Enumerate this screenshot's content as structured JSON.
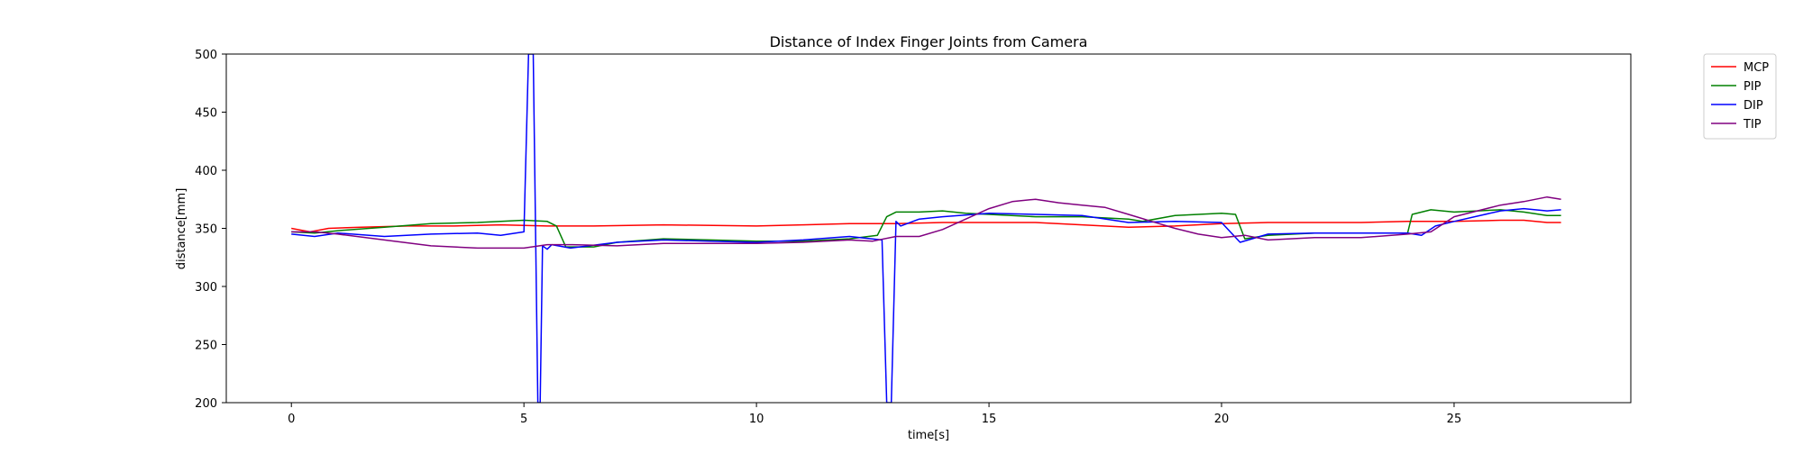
{
  "chart_data": {
    "type": "line",
    "title": "Distance of Index Finger Joints from Camera",
    "xlabel": "time[s]",
    "ylabel": "distance[mm]",
    "xlim": [
      -1.4,
      28.8
    ],
    "ylim": [
      200,
      500
    ],
    "xticks": [
      0,
      5,
      10,
      15,
      20,
      25
    ],
    "yticks": [
      200,
      250,
      300,
      350,
      400,
      450,
      500
    ],
    "grid": false,
    "legend_position": "outside-top-right",
    "series": [
      {
        "name": "MCP",
        "color": "#ff0000",
        "x": [
          0,
          0.4,
          0.8,
          1.5,
          2.5,
          3.5,
          4.5,
          5.5,
          6.5,
          8,
          10,
          11,
          12,
          13,
          14,
          15,
          16,
          17,
          18,
          19,
          20,
          21,
          22,
          23,
          24,
          25,
          26,
          26.5,
          27,
          27.3
        ],
        "y": [
          350,
          347,
          350,
          351,
          352,
          352,
          353,
          352,
          352,
          353,
          352,
          353,
          354,
          354,
          355,
          355,
          355,
          353,
          351,
          352,
          354,
          355,
          355,
          355,
          356,
          356,
          357,
          357,
          355,
          355
        ]
      },
      {
        "name": "PIP",
        "color": "#008000",
        "x": [
          0,
          0.5,
          1,
          2,
          3,
          4,
          5,
          5.5,
          5.7,
          5.9,
          6.5,
          7,
          8,
          9,
          10,
          11,
          12,
          12.6,
          12.8,
          13,
          13.5,
          14,
          14.5,
          15,
          16,
          17,
          18,
          18.3,
          19,
          20,
          20.3,
          20.5,
          21,
          22,
          23,
          24,
          24.1,
          24.5,
          25,
          26,
          26.5,
          27,
          27.3
        ],
        "y": [
          347,
          346,
          348,
          351,
          354,
          355,
          357,
          356,
          352,
          334,
          334,
          338,
          341,
          340,
          339,
          339,
          341,
          344,
          360,
          364,
          364,
          365,
          363,
          362,
          360,
          360,
          358,
          356,
          361,
          363,
          362,
          341,
          344,
          346,
          346,
          346,
          362,
          366,
          364,
          366,
          364,
          361,
          361
        ]
      },
      {
        "name": "DIP",
        "color": "#0000ff",
        "x": [
          0,
          0.5,
          1,
          2,
          3,
          4,
          4.5,
          5,
          5.1,
          5.2,
          5.3,
          5.35,
          5.4,
          5.5,
          5.6,
          6,
          7,
          8,
          9,
          10,
          11,
          12,
          12.7,
          12.8,
          12.9,
          13,
          13.1,
          13.5,
          14,
          15,
          16,
          17,
          18,
          19,
          20,
          20.4,
          21,
          22,
          23,
          24,
          24.3,
          24.6,
          25,
          26,
          26.5,
          27,
          27.3
        ],
        "y": [
          345,
          343,
          346,
          343,
          345,
          346,
          344,
          347,
          500,
          500,
          200,
          200,
          335,
          332,
          336,
          333,
          338,
          340,
          339,
          338,
          340,
          343,
          340,
          200,
          200,
          356,
          352,
          358,
          360,
          363,
          362,
          361,
          355,
          356,
          355,
          338,
          345,
          346,
          346,
          346,
          344,
          352,
          356,
          365,
          367,
          365,
          366
        ]
      },
      {
        "name": "TIP",
        "color": "#800080",
        "x": [
          0,
          0.5,
          1,
          2,
          3,
          4,
          5,
          5.5,
          6,
          7,
          8,
          9,
          10,
          11,
          12,
          12.5,
          13,
          13.5,
          14,
          14.5,
          15,
          15.5,
          16,
          16.5,
          17,
          17.5,
          18,
          18.5,
          19,
          19.5,
          20,
          20.5,
          21,
          22,
          23,
          24,
          24.5,
          25,
          25.5,
          26,
          26.5,
          27,
          27.3
        ],
        "y": [
          347,
          347,
          345,
          340,
          335,
          333,
          333,
          336,
          336,
          335,
          337,
          337,
          337,
          338,
          340,
          339,
          343,
          343,
          349,
          358,
          367,
          373,
          375,
          372,
          370,
          368,
          362,
          356,
          350,
          345,
          342,
          344,
          340,
          342,
          342,
          345,
          347,
          360,
          365,
          370,
          373,
          377,
          375
        ]
      }
    ]
  }
}
